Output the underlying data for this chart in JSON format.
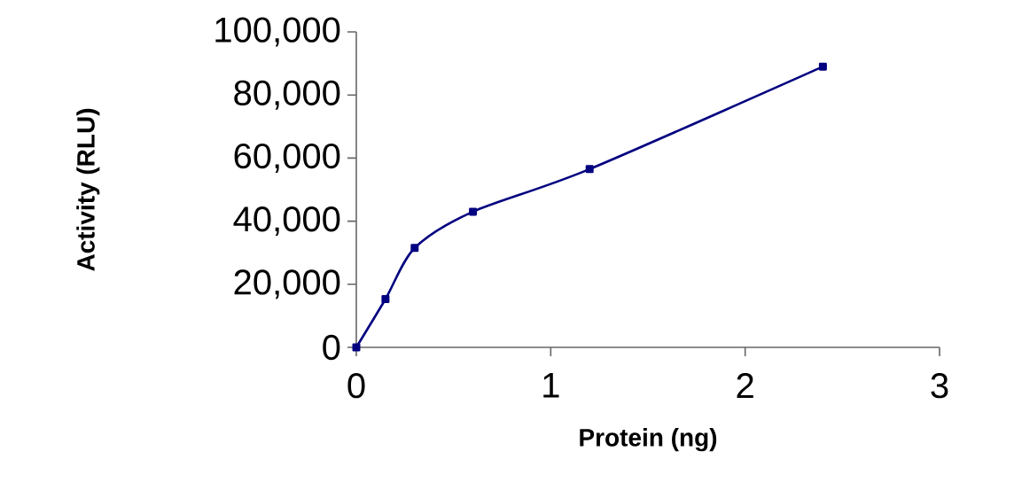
{
  "chart_data": {
    "type": "line",
    "xlabel": "Protein (ng)",
    "ylabel": "Activity (RLU)",
    "xlim": [
      0,
      3
    ],
    "xticks": [
      0,
      1,
      2,
      3
    ],
    "ylim": [
      0,
      100000
    ],
    "yticks": [
      {
        "value": 0,
        "label": "0"
      },
      {
        "value": 20000,
        "label": "20,000"
      },
      {
        "value": 40000,
        "label": "40,000"
      },
      {
        "value": 60000,
        "label": "60,000"
      },
      {
        "value": 80000,
        "label": "80,000"
      },
      {
        "value": 100000,
        "label": "100,000"
      }
    ],
    "x": [
      0,
      0.15,
      0.3,
      0.6,
      1.2,
      2.4
    ],
    "series": [
      {
        "color": "#000080",
        "values": [
          0,
          15300,
          31500,
          43000,
          56500,
          89000
        ]
      }
    ],
    "marker": "square",
    "line_style": "solid",
    "grid": false
  }
}
